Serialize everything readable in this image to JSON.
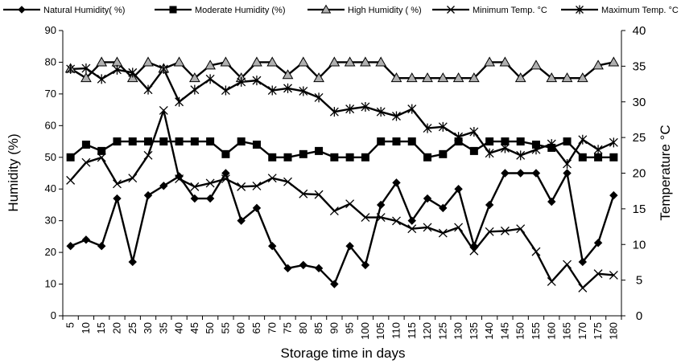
{
  "chart_data": {
    "type": "line",
    "title": "",
    "xlabel": "Storage time in days",
    "ylabel_left": "Humidity (%)",
    "ylabel_right": "Temperature  °C",
    "x": [
      5,
      10,
      15,
      20,
      25,
      30,
      35,
      40,
      45,
      50,
      55,
      60,
      65,
      70,
      75,
      80,
      85,
      90,
      95,
      100,
      105,
      110,
      115,
      120,
      125,
      130,
      135,
      140,
      145,
      150,
      155,
      160,
      165,
      170,
      175,
      180
    ],
    "ylim_left": [
      0,
      90
    ],
    "yticks_left": [
      0,
      10,
      20,
      30,
      40,
      50,
      60,
      70,
      80,
      90
    ],
    "ylim_right": [
      0,
      40
    ],
    "yticks_right": [
      0,
      5,
      10,
      15,
      20,
      25,
      30,
      35,
      40
    ],
    "grid": false,
    "legend_position": "top",
    "series": [
      {
        "name": "Natural Humidity( %)",
        "axis": "left",
        "marker": "diamond",
        "values": [
          22,
          24,
          22,
          37,
          17,
          38,
          41,
          44,
          37,
          37,
          45,
          30,
          34,
          22,
          15,
          16,
          15,
          10,
          22,
          16,
          35,
          42,
          30,
          37,
          34,
          40,
          22,
          35,
          45,
          45,
          45,
          36,
          45,
          17,
          23,
          38
        ]
      },
      {
        "name": "Moderate Humidity (%)",
        "axis": "left",
        "marker": "square",
        "values": [
          50,
          54,
          52,
          55,
          55,
          55,
          55,
          55,
          55,
          55,
          51,
          55,
          54,
          50,
          50,
          51,
          52,
          50,
          50,
          50,
          55,
          55,
          55,
          50,
          51,
          55,
          52,
          55,
          55,
          55,
          54,
          53,
          55,
          50,
          50,
          50
        ]
      },
      {
        "name": "High Humidity ( %)",
        "axis": "left",
        "marker": "triangle",
        "values": [
          78,
          75,
          80,
          80,
          75,
          80,
          78,
          80,
          75,
          79,
          80,
          75,
          80,
          80,
          76,
          80,
          75,
          80,
          80,
          80,
          80,
          75,
          75,
          75,
          75,
          75,
          75,
          80,
          80,
          75,
          79,
          75,
          75,
          75,
          79,
          80
        ]
      },
      {
        "name": "Minimum Temp. °C",
        "axis": "right",
        "marker": "x",
        "values": [
          19,
          21.5,
          22.2,
          18.5,
          19.3,
          22.5,
          28.8,
          19.2,
          18.1,
          18.6,
          19.2,
          18.1,
          18.2,
          19.3,
          18.8,
          17.1,
          17,
          14.7,
          15.7,
          13.8,
          13.8,
          13.3,
          12.2,
          12.4,
          11.6,
          12.4,
          9.1,
          11.8,
          11.9,
          12.2,
          9,
          4.8,
          7.2,
          3.9,
          5.9,
          5.7
        ]
      },
      {
        "name": "Maximum Temp. °C",
        "axis": "right",
        "marker": "star",
        "values": [
          34.6,
          34.7,
          33.2,
          34.5,
          34.1,
          31.7,
          34.6,
          30,
          31.7,
          33.2,
          31.6,
          32.8,
          33,
          31.6,
          31.9,
          31.5,
          30.6,
          28.6,
          29,
          29.3,
          28.6,
          28,
          29,
          26.3,
          26.5,
          25.1,
          25.8,
          22.8,
          23.5,
          22.5,
          23.3,
          24.1,
          21.3,
          24.7,
          23.3,
          24.3
        ]
      }
    ]
  }
}
